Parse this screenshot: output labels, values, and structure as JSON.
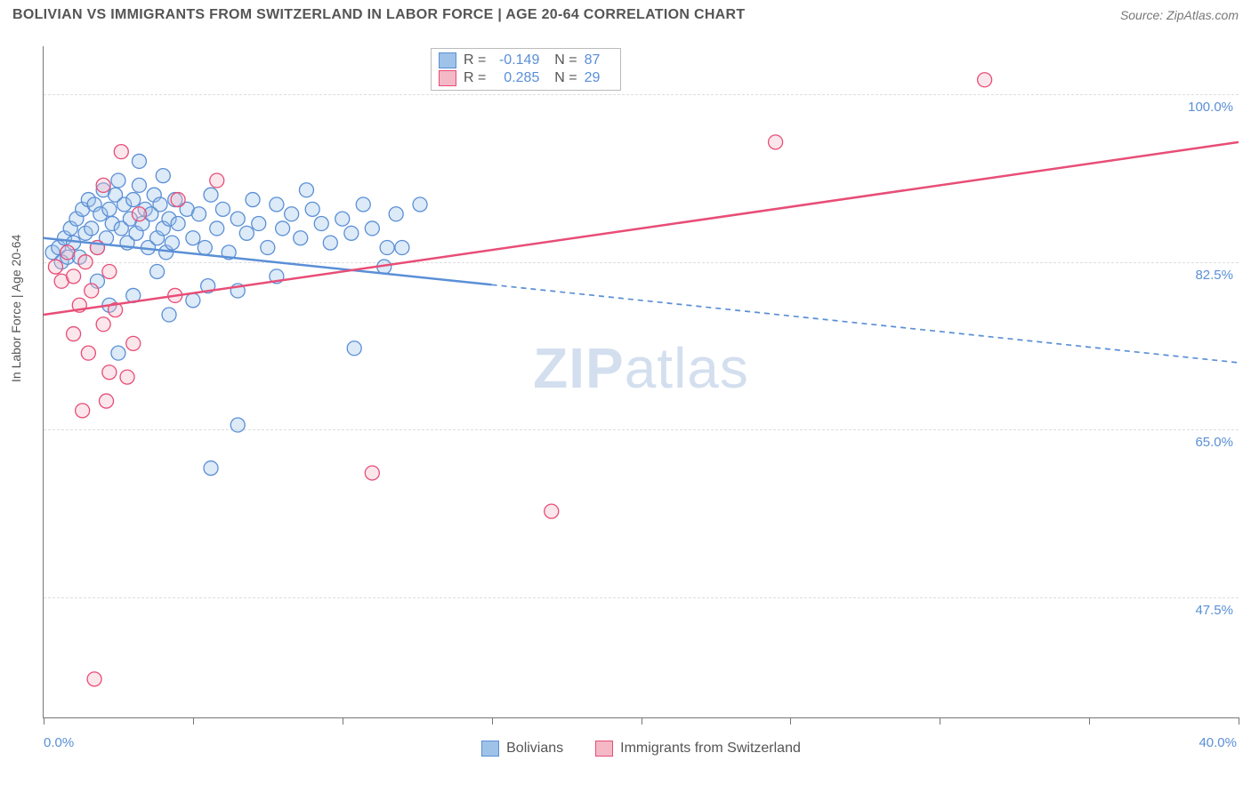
{
  "header": {
    "title": "BOLIVIAN VS IMMIGRANTS FROM SWITZERLAND IN LABOR FORCE | AGE 20-64 CORRELATION CHART",
    "source_prefix": "Source: ",
    "source_name": "ZipAtlas.com"
  },
  "watermark": {
    "zip": "ZIP",
    "atlas": "atlas"
  },
  "chart": {
    "type": "scatter",
    "ylabel": "In Labor Force | Age 20-64",
    "xlim": [
      0,
      40
    ],
    "ylim": [
      35,
      105
    ],
    "x_ticks": [
      0,
      5,
      10,
      15,
      20,
      25,
      30,
      35,
      40
    ],
    "x_tick_labels": {
      "0": "0.0%",
      "40": "40.0%"
    },
    "y_ticks": [
      47.5,
      65.0,
      82.5,
      100.0
    ],
    "y_tick_labels": [
      "47.5%",
      "65.0%",
      "82.5%",
      "100.0%"
    ],
    "grid_color": "#dddddd",
    "background_color": "#ffffff",
    "marker_radius": 8,
    "marker_fill_opacity": 0.35,
    "marker_stroke_width": 1.3,
    "series": [
      {
        "id": "bolivians",
        "label": "Bolivians",
        "color_fill": "#9fc2e8",
        "color_stroke": "#5a8fd6",
        "R": "-0.149",
        "N": "87",
        "trend": {
          "y_at_x0": 85.0,
          "y_at_x40": 72.0,
          "solid_until_x": 15,
          "stroke_width": 2.5,
          "dash": "6,5"
        },
        "points": [
          [
            0.3,
            83.5
          ],
          [
            0.5,
            84.0
          ],
          [
            0.6,
            82.5
          ],
          [
            0.7,
            85.0
          ],
          [
            0.8,
            83.0
          ],
          [
            0.9,
            86.0
          ],
          [
            1.0,
            84.5
          ],
          [
            1.1,
            87.0
          ],
          [
            1.2,
            83.0
          ],
          [
            1.3,
            88.0
          ],
          [
            1.4,
            85.5
          ],
          [
            1.5,
            89.0
          ],
          [
            1.6,
            86.0
          ],
          [
            1.7,
            88.5
          ],
          [
            1.8,
            84.0
          ],
          [
            1.9,
            87.5
          ],
          [
            2.0,
            90.0
          ],
          [
            2.1,
            85.0
          ],
          [
            2.2,
            88.0
          ],
          [
            2.3,
            86.5
          ],
          [
            2.4,
            89.5
          ],
          [
            2.5,
            91.0
          ],
          [
            2.6,
            86.0
          ],
          [
            2.7,
            88.5
          ],
          [
            2.8,
            84.5
          ],
          [
            2.9,
            87.0
          ],
          [
            3.0,
            89.0
          ],
          [
            3.1,
            85.5
          ],
          [
            3.2,
            90.5
          ],
          [
            3.3,
            86.5
          ],
          [
            3.4,
            88.0
          ],
          [
            3.5,
            84.0
          ],
          [
            3.6,
            87.5
          ],
          [
            3.7,
            89.5
          ],
          [
            3.8,
            85.0
          ],
          [
            3.9,
            88.5
          ],
          [
            4.0,
            86.0
          ],
          [
            4.1,
            83.5
          ],
          [
            4.2,
            87.0
          ],
          [
            4.3,
            84.5
          ],
          [
            4.4,
            89.0
          ],
          [
            4.5,
            86.5
          ],
          [
            4.8,
            88.0
          ],
          [
            5.0,
            85.0
          ],
          [
            5.2,
            87.5
          ],
          [
            5.4,
            84.0
          ],
          [
            5.6,
            89.5
          ],
          [
            5.8,
            86.0
          ],
          [
            6.0,
            88.0
          ],
          [
            6.2,
            83.5
          ],
          [
            6.5,
            87.0
          ],
          [
            6.8,
            85.5
          ],
          [
            7.0,
            89.0
          ],
          [
            7.2,
            86.5
          ],
          [
            7.5,
            84.0
          ],
          [
            7.8,
            88.5
          ],
          [
            8.0,
            86.0
          ],
          [
            8.3,
            87.5
          ],
          [
            8.6,
            85.0
          ],
          [
            9.0,
            88.0
          ],
          [
            9.3,
            86.5
          ],
          [
            9.6,
            84.5
          ],
          [
            10.0,
            87.0
          ],
          [
            10.3,
            85.5
          ],
          [
            10.7,
            88.5
          ],
          [
            11.0,
            86.0
          ],
          [
            11.5,
            84.0
          ],
          [
            11.8,
            87.5
          ],
          [
            3.0,
            79.0
          ],
          [
            4.2,
            77.0
          ],
          [
            5.5,
            80.0
          ],
          [
            2.2,
            78.0
          ],
          [
            1.8,
            80.5
          ],
          [
            6.5,
            79.5
          ],
          [
            7.8,
            81.0
          ],
          [
            3.8,
            81.5
          ],
          [
            5.0,
            78.5
          ],
          [
            11.4,
            82.0
          ],
          [
            12.6,
            88.5
          ],
          [
            12.0,
            84.0
          ],
          [
            6.5,
            65.5
          ],
          [
            5.6,
            61.0
          ],
          [
            10.4,
            73.5
          ],
          [
            2.5,
            73.0
          ],
          [
            4.0,
            91.5
          ],
          [
            3.2,
            93.0
          ],
          [
            8.8,
            90.0
          ]
        ]
      },
      {
        "id": "swiss",
        "label": "Immigrants from Switzerland",
        "color_fill": "#f4b8c6",
        "color_stroke": "#e84d77",
        "R": "0.285",
        "N": "29",
        "trend": {
          "y_at_x0": 77.0,
          "y_at_x40": 95.0,
          "solid_until_x": 40,
          "stroke_width": 2.5,
          "dash": ""
        },
        "points": [
          [
            0.4,
            82.0
          ],
          [
            0.6,
            80.5
          ],
          [
            0.8,
            83.5
          ],
          [
            1.0,
            81.0
          ],
          [
            1.2,
            78.0
          ],
          [
            1.4,
            82.5
          ],
          [
            1.6,
            79.5
          ],
          [
            1.8,
            84.0
          ],
          [
            2.0,
            76.0
          ],
          [
            2.2,
            81.5
          ],
          [
            2.4,
            77.5
          ],
          [
            1.0,
            75.0
          ],
          [
            1.5,
            73.0
          ],
          [
            2.2,
            71.0
          ],
          [
            3.0,
            74.0
          ],
          [
            2.1,
            68.0
          ],
          [
            2.8,
            70.5
          ],
          [
            1.3,
            67.0
          ],
          [
            5.8,
            91.0
          ],
          [
            4.5,
            89.0
          ],
          [
            3.2,
            87.5
          ],
          [
            2.6,
            94.0
          ],
          [
            2.0,
            90.5
          ],
          [
            11.0,
            60.5
          ],
          [
            17.0,
            56.5
          ],
          [
            24.5,
            95.0
          ],
          [
            31.5,
            101.5
          ],
          [
            1.7,
            39.0
          ],
          [
            4.4,
            79.0
          ]
        ]
      }
    ],
    "legend_bottom": [
      {
        "label": "Bolivians",
        "fill": "#9fc2e8",
        "stroke": "#5a8fd6"
      },
      {
        "label": "Immigrants from Switzerland",
        "fill": "#f4b8c6",
        "stroke": "#e84d77"
      }
    ]
  }
}
